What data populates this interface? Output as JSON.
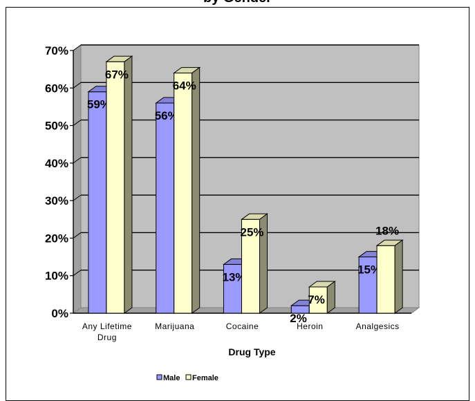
{
  "chart_data": {
    "type": "bar",
    "title": "by Gender",
    "categories": [
      [
        "Any Lifetime",
        "Drug"
      ],
      [
        "Marijuana"
      ],
      [
        "Cocaine"
      ],
      [
        "Heroin"
      ],
      [
        "Analgesics"
      ]
    ],
    "series": [
      {
        "name": "Male",
        "values": [
          0.59,
          0.56,
          0.13,
          0.02,
          0.15
        ],
        "labels": [
          "59%",
          "56%",
          "13%",
          "2%",
          "15%"
        ]
      },
      {
        "name": "Female",
        "values": [
          0.67,
          0.64,
          0.25,
          0.07,
          0.18
        ],
        "labels": [
          "67%",
          "64%",
          "25%",
          "7%",
          "18%"
        ]
      }
    ],
    "xlabel": "Drug Type",
    "ylabel": "",
    "ylim": [
      0,
      0.7
    ],
    "yticks": [
      "0%",
      "10%",
      "20%",
      "30%",
      "40%",
      "50%",
      "60%",
      "70%"
    ],
    "grid": true,
    "legend_position": "bottom",
    "colors": {
      "male": "#9999ff",
      "female": "#ffffcc",
      "wall": "#c0c0c0"
    }
  }
}
